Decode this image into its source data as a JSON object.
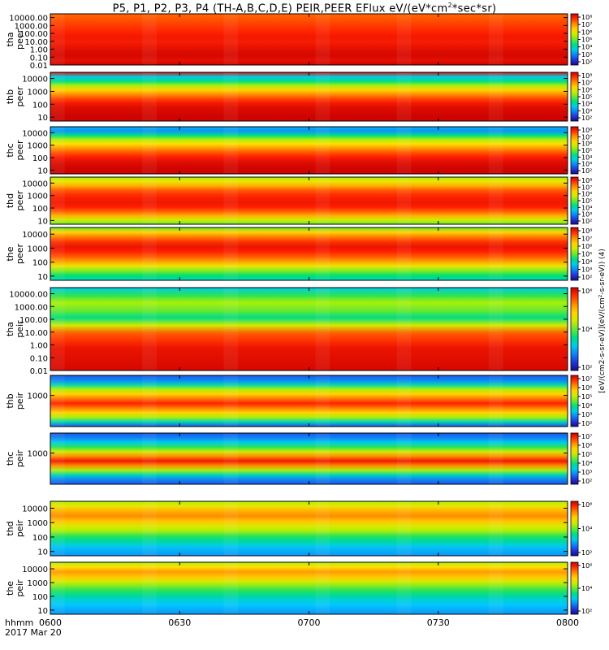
{
  "figure": {
    "title_prefix": "P5, P1, P2, P3, P4 (TH-A,B,C,D,E) PEIR,PEER EFlux eV/(eV*cm",
    "title_sup": "2",
    "title_suffix": "*sec*sr)",
    "time_label": "hhmm",
    "date_label": "2017 Mar 20",
    "colorbar_unit_label": "[eV/(cm2-s-sr-eV)](eV/(cm²-s-sr-eV)) (4)"
  },
  "chart_data": {
    "type": "heatmap",
    "title": "P5, P1, P2, P3, P4 (TH-A,B,C,D,E) PEIR,PEER EFlux eV/(eV*cm2*sec*sr)",
    "x_axis": {
      "label": "hhmm",
      "date": "2017 Mar 20",
      "ticks": [
        "0600",
        "0630",
        "0700",
        "0730",
        "0800"
      ],
      "range": [
        "06:00",
        "08:00"
      ]
    },
    "colormap": "rainbow",
    "panels": [
      {
        "ylabel": [
          "tha",
          "peer"
        ],
        "yscale": "log",
        "yticks": [
          "10000.00",
          "1000.00",
          "100.00",
          "10.00",
          "1.00",
          "0.10",
          "0.01"
        ],
        "ylim": [
          0.01,
          30000
        ],
        "cb_ticks": [
          "10⁸",
          "10⁷",
          "10⁶",
          "10⁵",
          "10⁴",
          "10³",
          "10²"
        ],
        "cb_range_log": [
          2,
          8
        ]
      },
      {
        "ylabel": [
          "thb",
          "peer"
        ],
        "yscale": "log",
        "yticks": [
          "10000",
          "1000",
          "100",
          "10"
        ],
        "ylim": [
          5,
          30000
        ],
        "cb_ticks": [
          "10⁸",
          "10⁷",
          "10⁶",
          "10⁵",
          "10⁴",
          "10³",
          "10²"
        ],
        "cb_range_log": [
          2,
          8
        ]
      },
      {
        "ylabel": [
          "thc",
          "peer"
        ],
        "yscale": "log",
        "yticks": [
          "10000",
          "1000",
          "100",
          "10"
        ],
        "ylim": [
          5,
          30000
        ],
        "cb_ticks": [
          "10⁸",
          "10⁷",
          "10⁶",
          "10⁵",
          "10⁴",
          "10³",
          "10²"
        ],
        "cb_range_log": [
          2,
          8
        ]
      },
      {
        "ylabel": [
          "thd",
          "peer"
        ],
        "yscale": "log",
        "yticks": [
          "10000",
          "1000",
          "100",
          "10"
        ],
        "ylim": [
          5,
          30000
        ],
        "cb_ticks": [
          "10⁸",
          "10⁷",
          "10⁶",
          "10⁵",
          "10⁴",
          "10³",
          "10²"
        ],
        "cb_range_log": [
          2,
          8
        ]
      },
      {
        "ylabel": [
          "the",
          "peer"
        ],
        "yscale": "log",
        "yticks": [
          "10000",
          "1000",
          "100",
          "10"
        ],
        "ylim": [
          5,
          30000
        ],
        "cb_ticks": [
          "10⁸",
          "10⁷",
          "10⁶",
          "10⁵",
          "10⁴",
          "10³",
          "10²"
        ],
        "cb_range_log": [
          2,
          8
        ]
      },
      {
        "ylabel": [
          "tha",
          "peir"
        ],
        "yscale": "log",
        "yticks": [
          "10000.00",
          "1000.00",
          "100.00",
          "10.00",
          "1.00",
          "0.10",
          "0.01"
        ],
        "ylim": [
          0.01,
          30000
        ],
        "cb_ticks": [
          "10⁶",
          "10⁴",
          "10²"
        ],
        "cb_range_log": [
          1,
          7
        ]
      },
      {
        "ylabel": [
          "thb",
          "peir"
        ],
        "yscale": "log",
        "yticks": [
          "1000"
        ],
        "ylim": [
          5,
          30000
        ],
        "cb_ticks": [
          "10⁷",
          "10⁶",
          "10⁵",
          "10⁴",
          "10³",
          "10²"
        ],
        "cb_range_log": [
          2,
          7.5
        ]
      },
      {
        "ylabel": [
          "thc",
          "peir"
        ],
        "yscale": "log",
        "yticks": [
          "1000"
        ],
        "ylim": [
          5,
          30000
        ],
        "cb_ticks": [
          "10⁷",
          "10⁶",
          "10⁵",
          "10⁴",
          "10³",
          "10²"
        ],
        "cb_range_log": [
          2,
          7.5
        ]
      },
      {
        "ylabel": [
          "thd",
          "peir"
        ],
        "yscale": "log",
        "yticks": [
          "10000",
          "1000",
          "100",
          "10"
        ],
        "ylim": [
          5,
          30000
        ],
        "cb_ticks": [
          "10⁶",
          "10⁴",
          "10²"
        ],
        "cb_range_log": [
          1,
          7
        ]
      },
      {
        "ylabel": [
          "the",
          "peir"
        ],
        "yscale": "log",
        "yticks": [
          "10000",
          "1000",
          "100",
          "10"
        ],
        "ylim": [
          5,
          30000
        ],
        "cb_ticks": [
          "10⁶",
          "10⁴",
          "10²"
        ],
        "cb_range_log": [
          1,
          7
        ]
      }
    ]
  }
}
